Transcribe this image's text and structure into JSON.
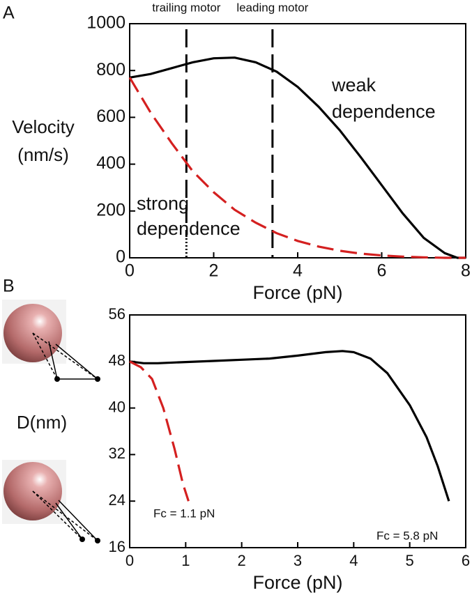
{
  "chart_data": [
    {
      "type": "line",
      "panel_label": "A",
      "xlabel": "Force (pN)",
      "ylabel": [
        "Velocity",
        "(nm/s)"
      ],
      "xlim": [
        0,
        8
      ],
      "xticks": [
        0,
        2,
        4,
        6,
        8
      ],
      "ylim": [
        0,
        1000
      ],
      "yticks": [
        0,
        200,
        400,
        600,
        800,
        1000
      ],
      "series": [
        {
          "color": "#000000",
          "dash": false,
          "x": [
            0,
            0.5,
            1,
            1.5,
            2,
            2.5,
            3,
            3.5,
            4,
            4.5,
            5,
            5.5,
            6,
            6.5,
            7,
            7.5,
            7.8,
            8
          ],
          "values": [
            770,
            785,
            810,
            835,
            852,
            855,
            835,
            795,
            730,
            645,
            545,
            430,
            310,
            190,
            85,
            20,
            0,
            0
          ]
        },
        {
          "color": "#d42020",
          "dash": true,
          "x": [
            0,
            0.5,
            1,
            1.5,
            2,
            2.5,
            3,
            3.5,
            4,
            4.5,
            5,
            5.5,
            6,
            6.5,
            7,
            7.5,
            8
          ],
          "values": [
            770,
            620,
            490,
            370,
            280,
            205,
            150,
            105,
            72,
            48,
            30,
            18,
            10,
            5,
            2,
            0,
            0
          ]
        }
      ],
      "vlines": [
        {
          "x": 1.35,
          "label": "trailing motor"
        },
        {
          "x": 3.4,
          "label": "leading motor"
        }
      ],
      "annotations": [
        [
          "weak",
          "dependence"
        ],
        [
          "strong",
          "dependence"
        ]
      ]
    },
    {
      "type": "line",
      "panel_label": "B",
      "xlabel": "Force (pN)",
      "ylabel": [
        "D(nm)"
      ],
      "xlim": [
        0,
        6
      ],
      "xticks": [
        0,
        1,
        2,
        3,
        4,
        5,
        6
      ],
      "ylim": [
        16,
        56
      ],
      "yticks": [
        16,
        24,
        32,
        40,
        48,
        56
      ],
      "series": [
        {
          "color": "#000000",
          "dash": false,
          "x": [
            0,
            0.25,
            0.5,
            1,
            1.5,
            2,
            2.5,
            3,
            3.5,
            3.8,
            4,
            4.3,
            4.6,
            5,
            5.3,
            5.5,
            5.7
          ],
          "values": [
            48,
            47.7,
            47.7,
            47.9,
            48.1,
            48.3,
            48.5,
            49,
            49.6,
            49.8,
            49.6,
            48.5,
            46,
            40.5,
            35,
            30,
            24
          ]
        },
        {
          "color": "#d42020",
          "dash": true,
          "x": [
            0,
            0.2,
            0.4,
            0.6,
            0.8,
            0.95,
            1.05
          ],
          "values": [
            48,
            47,
            45,
            40,
            33,
            27,
            24
          ]
        }
      ],
      "annotations": [
        [
          "Fc = 1.1 pN"
        ],
        [
          "Fc = 5.8 pN"
        ]
      ]
    }
  ]
}
